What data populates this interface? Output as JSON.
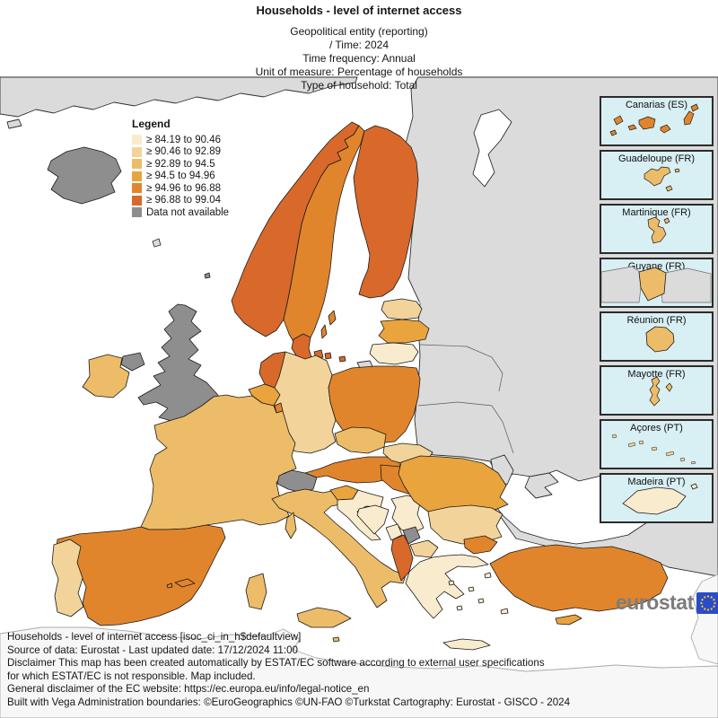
{
  "header": {
    "title": "Households - level of internet access",
    "subtitle_lines": [
      "Geopolitical entity (reporting)",
      "/ Time:  2024",
      "Time frequency:  Annual",
      "Unit of measure:  Percentage of households",
      "Type of household:  Total"
    ]
  },
  "palette": {
    "c1": "#F9EBCD",
    "c2": "#F2D49B",
    "c3": "#ECBC68",
    "c4": "#E9A43D",
    "c5": "#E1852C",
    "c6": "#D8692B",
    "no_data": "#8E8E8E",
    "non_eu": "#DBDBDB",
    "far_land": "#F7F7F7",
    "sea": "#FFFFFF",
    "inset_bg": "#D8EFF4",
    "logo_blue": "#2B4BC8",
    "star_yellow": "#FFD617",
    "logo_gray": "#7C7C7C"
  },
  "legend": {
    "title": "Legend",
    "items": [
      {
        "label": "≥ 84.19 to 90.46",
        "key": "c1"
      },
      {
        "label": "≥ 90.46 to 92.89",
        "key": "c2"
      },
      {
        "label": "≥ 92.89 to 94.5",
        "key": "c3"
      },
      {
        "label": "≥ 94.5 to 94.96",
        "key": "c4"
      },
      {
        "label": "≥ 94.96 to 96.88",
        "key": "c5"
      },
      {
        "label": "≥ 96.88 to 99.04",
        "key": "c6"
      },
      {
        "label": "Data not available",
        "key": "no_data"
      }
    ]
  },
  "insets": [
    {
      "label": "Canarias (ES)",
      "key": "c5"
    },
    {
      "label": "Guadeloupe (FR)",
      "key": "c3"
    },
    {
      "label": "Martinique (FR)",
      "key": "c3"
    },
    {
      "label": "Guyane (FR)",
      "key": "c3"
    },
    {
      "label": "Réunion (FR)",
      "key": "c3"
    },
    {
      "label": "Mayotte (FR)",
      "key": "c3"
    },
    {
      "label": "Açores (PT)",
      "key": "c2"
    },
    {
      "label": "Madeira (PT)",
      "key": "c1"
    }
  ],
  "map": {
    "country_levels": {
      "norway": "c6",
      "sweden": "c5",
      "finland": "c6",
      "denmark": "c6",
      "denmark-isles": "c6",
      "bornholm": "c6",
      "estonia": "c2",
      "latvia": "c4",
      "lithuania": "c1",
      "poland": "c5",
      "germany": "c2",
      "netherlands": "c6",
      "belgium": "c4",
      "luxembourg": "c5",
      "france": "c3",
      "corsica": "c3",
      "sardinia": "c3",
      "switzerland": "no_data",
      "austria": "c5",
      "czechia": "c3",
      "slovakia": "c2",
      "hungary": "c5",
      "slovenia": "c4",
      "croatia": "c1",
      "bosnia": "c1",
      "serbia": "c1",
      "montenegro": "c1",
      "kosovo": "no_data",
      "north-macedonia": "c2",
      "albania": "c6",
      "greece": "c1",
      "crete": "c1",
      "aegean-isles": "c1",
      "bulgaria": "c2",
      "romania": "c4",
      "italy": "c3",
      "sicily": "c3",
      "malta": "c3",
      "spain": "c5",
      "balearics": "c5",
      "portugal": "c2",
      "ireland": "c3",
      "uk": "no_data",
      "northern-ireland": "no_data",
      "iceland": "no_data",
      "gotland": "c5",
      "oland": "c5",
      "turkey-thrace": "c5",
      "turkey": "c5",
      "cyprus": "c4",
      "greenland": "non_eu",
      "east-mass": "non_eu",
      "kaliningrad": "non_eu",
      "moldova": "non_eu",
      "crimea": "non_eu",
      "faroe": "non_eu",
      "shetland": "no_data",
      "levant": "far_land",
      "africa": "far_land",
      "white-sea": "sea",
      "black-sea": "sea",
      "gulf-of-finland": "sea"
    }
  },
  "footer": {
    "lines": [
      "Households - level of internet access [isoc_ci_in_h$defaultview]",
      "Source of data: Eurostat - Last updated date: 17/12/2024 11:00",
      "Disclaimer This map has been created automatically by ESTAT/EC software according to external user specifications",
      "for which ESTAT/EC is not responsible. Map included.",
      "General disclaimer of the EC website: https://ec.europa.eu/info/legal-notice_en",
      "Built with Vega Administration boundaries: ©EuroGeographics ©UN-FAO ©Turkstat Cartography: Eurostat - GISCO - 2024"
    ]
  },
  "logo": {
    "text": "eurostat"
  }
}
